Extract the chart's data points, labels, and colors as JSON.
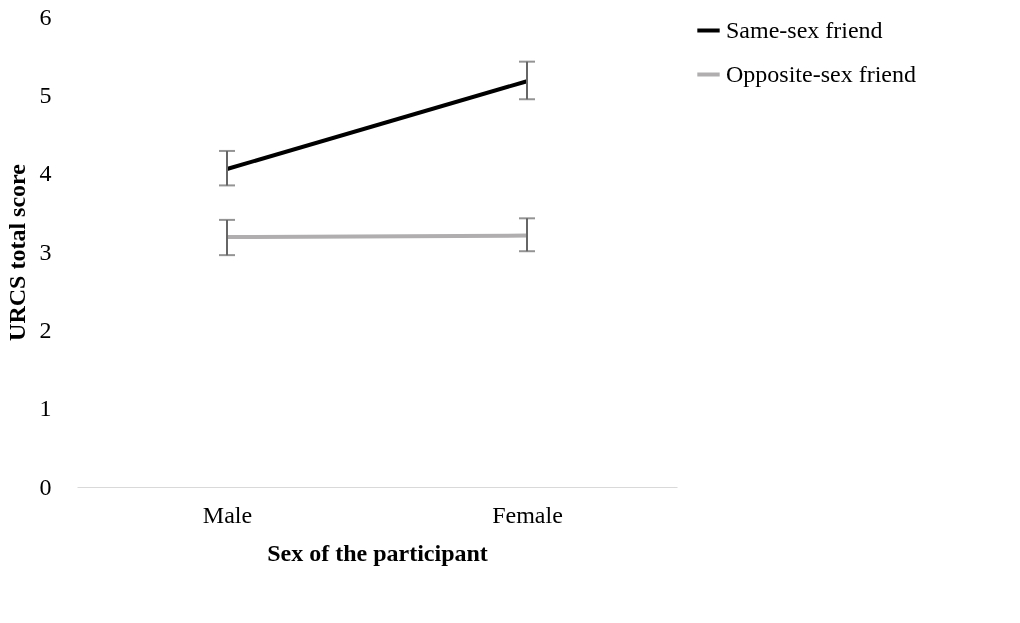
{
  "chart_data": {
    "type": "line",
    "xlabel": "Sex of the participant",
    "ylabel": "URCS total score",
    "categories": [
      "Male",
      "Female"
    ],
    "series": [
      {
        "name": "Same-sex friend",
        "color": "#000000",
        "values": [
          4.06,
          5.18
        ],
        "errors": [
          [
            3.85,
            4.29
          ],
          [
            4.95,
            5.43
          ]
        ]
      },
      {
        "name": "Opposite-sex friend",
        "color": "#b0aeae",
        "values": [
          3.19,
          3.21
        ],
        "errors": [
          [
            2.96,
            3.41
          ],
          [
            3.01,
            3.43
          ]
        ]
      }
    ],
    "ylim": [
      0,
      6
    ],
    "yticks": [
      0,
      1,
      2,
      3,
      4,
      5,
      6
    ],
    "grid": false,
    "legend": "top right",
    "marker": "none",
    "line_style": "solid"
  }
}
